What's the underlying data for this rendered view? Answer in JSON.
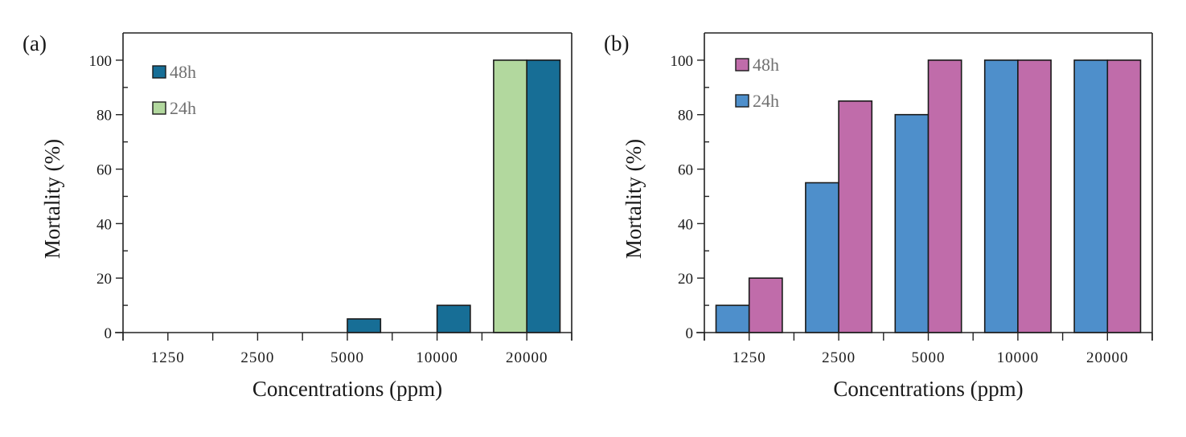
{
  "chart_data": [
    {
      "type": "bar",
      "panel_label": "(a)",
      "categories": [
        "1250",
        "2500",
        "5000",
        "10000",
        "20000"
      ],
      "series": [
        {
          "name": "24h",
          "color": "#b2d89e",
          "values": [
            0,
            0,
            0,
            0,
            100
          ]
        },
        {
          "name": "48h",
          "color": "#176e96",
          "values": [
            0,
            0,
            5,
            10,
            100
          ]
        }
      ],
      "legend_order": [
        "48h",
        "24h"
      ],
      "legend_position": "top-left",
      "xlabel": "Concentrations (ppm)",
      "ylabel": "Mortality  (%)",
      "ylim": [
        0,
        110
      ],
      "yticks": [
        "0",
        "20",
        "40",
        "60",
        "80",
        "100"
      ],
      "grid": false
    },
    {
      "type": "bar",
      "panel_label": "(b)",
      "categories": [
        "1250",
        "2500",
        "5000",
        "10000",
        "20000"
      ],
      "series": [
        {
          "name": "24h",
          "color": "#4e8fcb",
          "values": [
            10,
            55,
            80,
            100,
            100
          ]
        },
        {
          "name": "48h",
          "color": "#c06caa",
          "values": [
            20,
            85,
            100,
            100,
            100
          ]
        }
      ],
      "legend_order": [
        "48h",
        "24h"
      ],
      "legend_position": "top-left",
      "xlabel": "Concentrations (ppm)",
      "ylabel": "Mortality  (%)",
      "ylim": [
        0,
        110
      ],
      "yticks": [
        "0",
        "20",
        "40",
        "60",
        "80",
        "100"
      ],
      "grid": false
    }
  ]
}
